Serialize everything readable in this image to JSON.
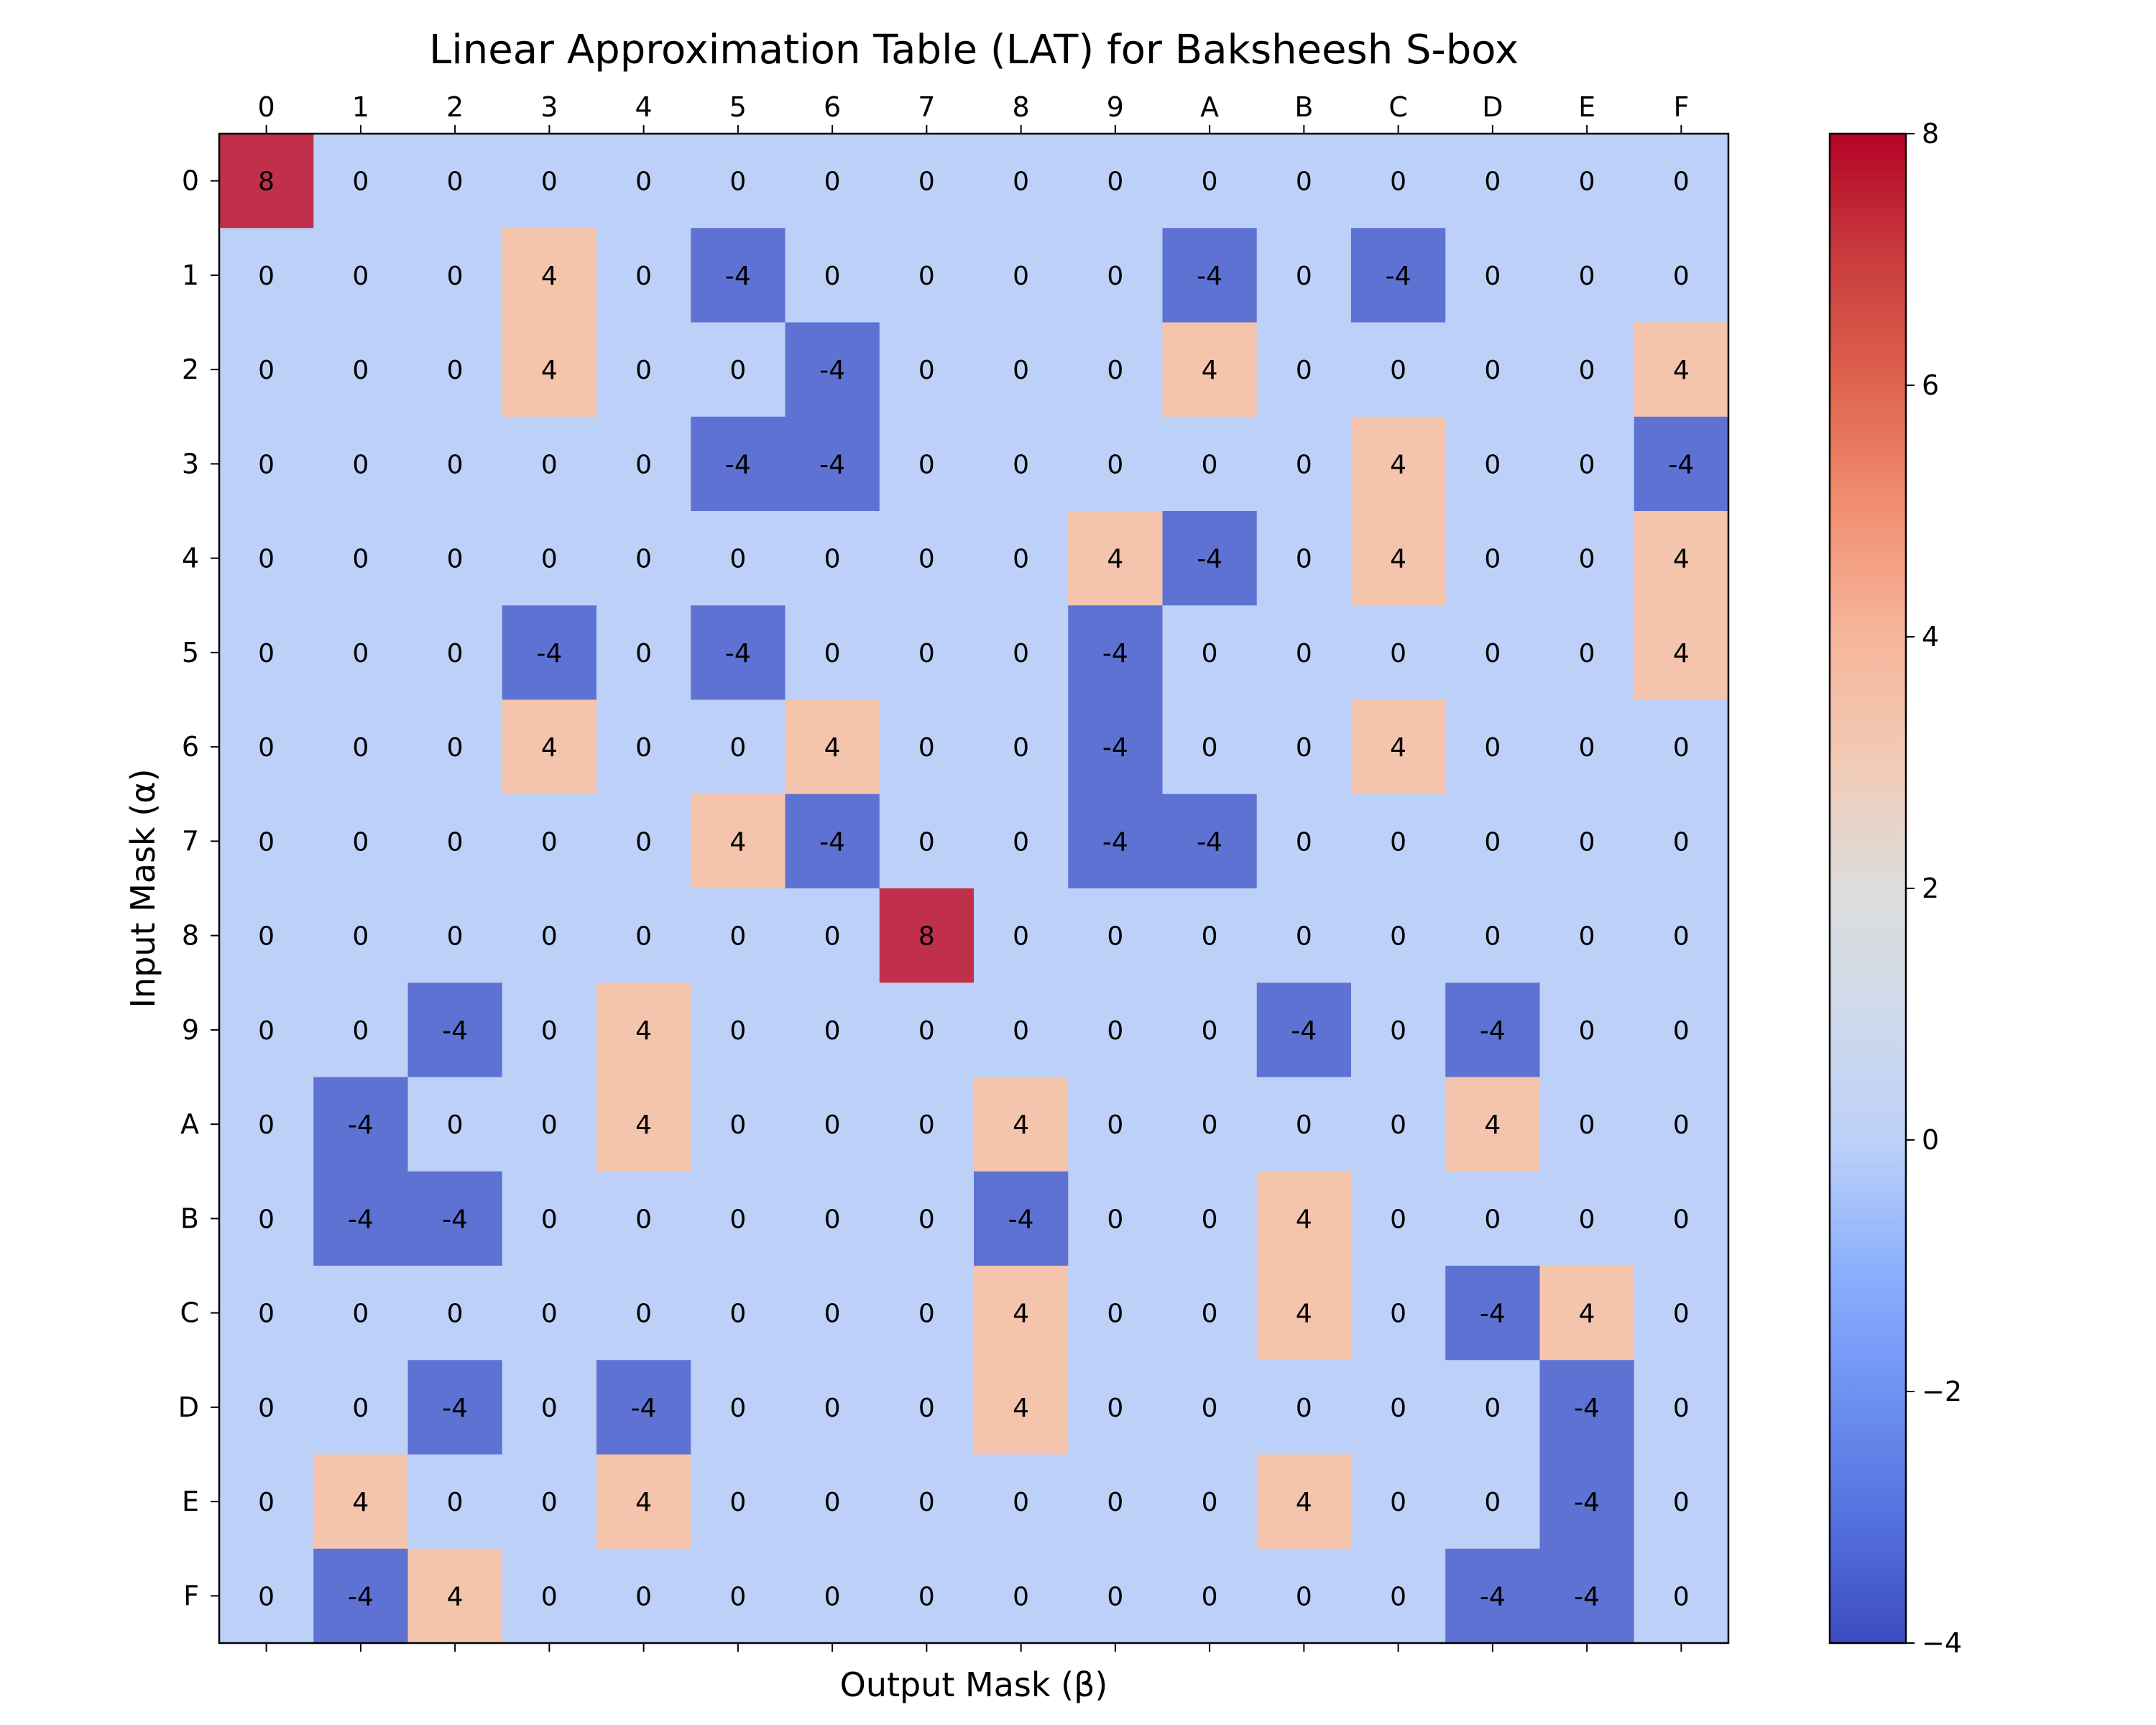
{
  "chart_data": {
    "type": "heatmap",
    "title": "Linear Approximation Table (LAT) for Baksheesh S-box",
    "xlabel": "Output Mask (β)",
    "ylabel": "Input Mask (α)",
    "x_categories": [
      "0",
      "1",
      "2",
      "3",
      "4",
      "5",
      "6",
      "7",
      "8",
      "9",
      "A",
      "B",
      "C",
      "D",
      "E",
      "F"
    ],
    "y_categories": [
      "0",
      "1",
      "2",
      "3",
      "4",
      "5",
      "6",
      "7",
      "8",
      "9",
      "A",
      "B",
      "C",
      "D",
      "E",
      "F"
    ],
    "x_axis_position": "top",
    "values": [
      [
        8,
        0,
        0,
        0,
        0,
        0,
        0,
        0,
        0,
        0,
        0,
        0,
        0,
        0,
        0,
        0
      ],
      [
        0,
        0,
        0,
        4,
        0,
        -4,
        0,
        0,
        0,
        0,
        -4,
        0,
        -4,
        0,
        0,
        0
      ],
      [
        0,
        0,
        0,
        4,
        0,
        0,
        -4,
        0,
        0,
        0,
        4,
        0,
        0,
        0,
        0,
        4
      ],
      [
        0,
        0,
        0,
        0,
        0,
        -4,
        -4,
        0,
        0,
        0,
        0,
        0,
        4,
        0,
        0,
        -4
      ],
      [
        0,
        0,
        0,
        0,
        0,
        0,
        0,
        0,
        0,
        4,
        -4,
        0,
        4,
        0,
        0,
        4
      ],
      [
        0,
        0,
        0,
        -4,
        0,
        -4,
        0,
        0,
        0,
        -4,
        0,
        0,
        0,
        0,
        0,
        4
      ],
      [
        0,
        0,
        0,
        4,
        0,
        0,
        4,
        0,
        0,
        -4,
        0,
        0,
        4,
        0,
        0,
        0
      ],
      [
        0,
        0,
        0,
        0,
        0,
        4,
        -4,
        0,
        0,
        -4,
        -4,
        0,
        0,
        0,
        0,
        0
      ],
      [
        0,
        0,
        0,
        0,
        0,
        0,
        0,
        8,
        0,
        0,
        0,
        0,
        0,
        0,
        0,
        0
      ],
      [
        0,
        0,
        -4,
        0,
        4,
        0,
        0,
        0,
        0,
        0,
        0,
        -4,
        0,
        -4,
        0,
        0
      ],
      [
        0,
        -4,
        0,
        0,
        4,
        0,
        0,
        0,
        4,
        0,
        0,
        0,
        0,
        4,
        0,
        0
      ],
      [
        0,
        -4,
        -4,
        0,
        0,
        0,
        0,
        0,
        -4,
        0,
        0,
        4,
        0,
        0,
        0,
        0
      ],
      [
        0,
        0,
        0,
        0,
        0,
        0,
        0,
        0,
        4,
        0,
        0,
        4,
        0,
        -4,
        4,
        0
      ],
      [
        0,
        0,
        -4,
        0,
        -4,
        0,
        0,
        0,
        4,
        0,
        0,
        0,
        0,
        0,
        -4,
        0
      ],
      [
        0,
        4,
        0,
        0,
        4,
        0,
        0,
        0,
        0,
        0,
        0,
        4,
        0,
        0,
        -4,
        0
      ],
      [
        0,
        -4,
        4,
        0,
        0,
        0,
        0,
        0,
        0,
        0,
        0,
        0,
        0,
        -4,
        -4,
        0
      ]
    ],
    "colormap": "coolwarm",
    "colorbar": {
      "min": -4,
      "max": 8,
      "ticks": [
        -4,
        -2,
        0,
        2,
        4,
        6,
        8
      ],
      "tick_labels": [
        "−4",
        "−2",
        "0",
        "2",
        "4",
        "6",
        "8"
      ]
    },
    "colors": {
      "value_-4": "#5e72d3",
      "value_0": "#bcd0f8",
      "value_4": "#f5c4ac",
      "value_8": "#c0304b"
    },
    "grid": false,
    "cell_annotations": true
  }
}
